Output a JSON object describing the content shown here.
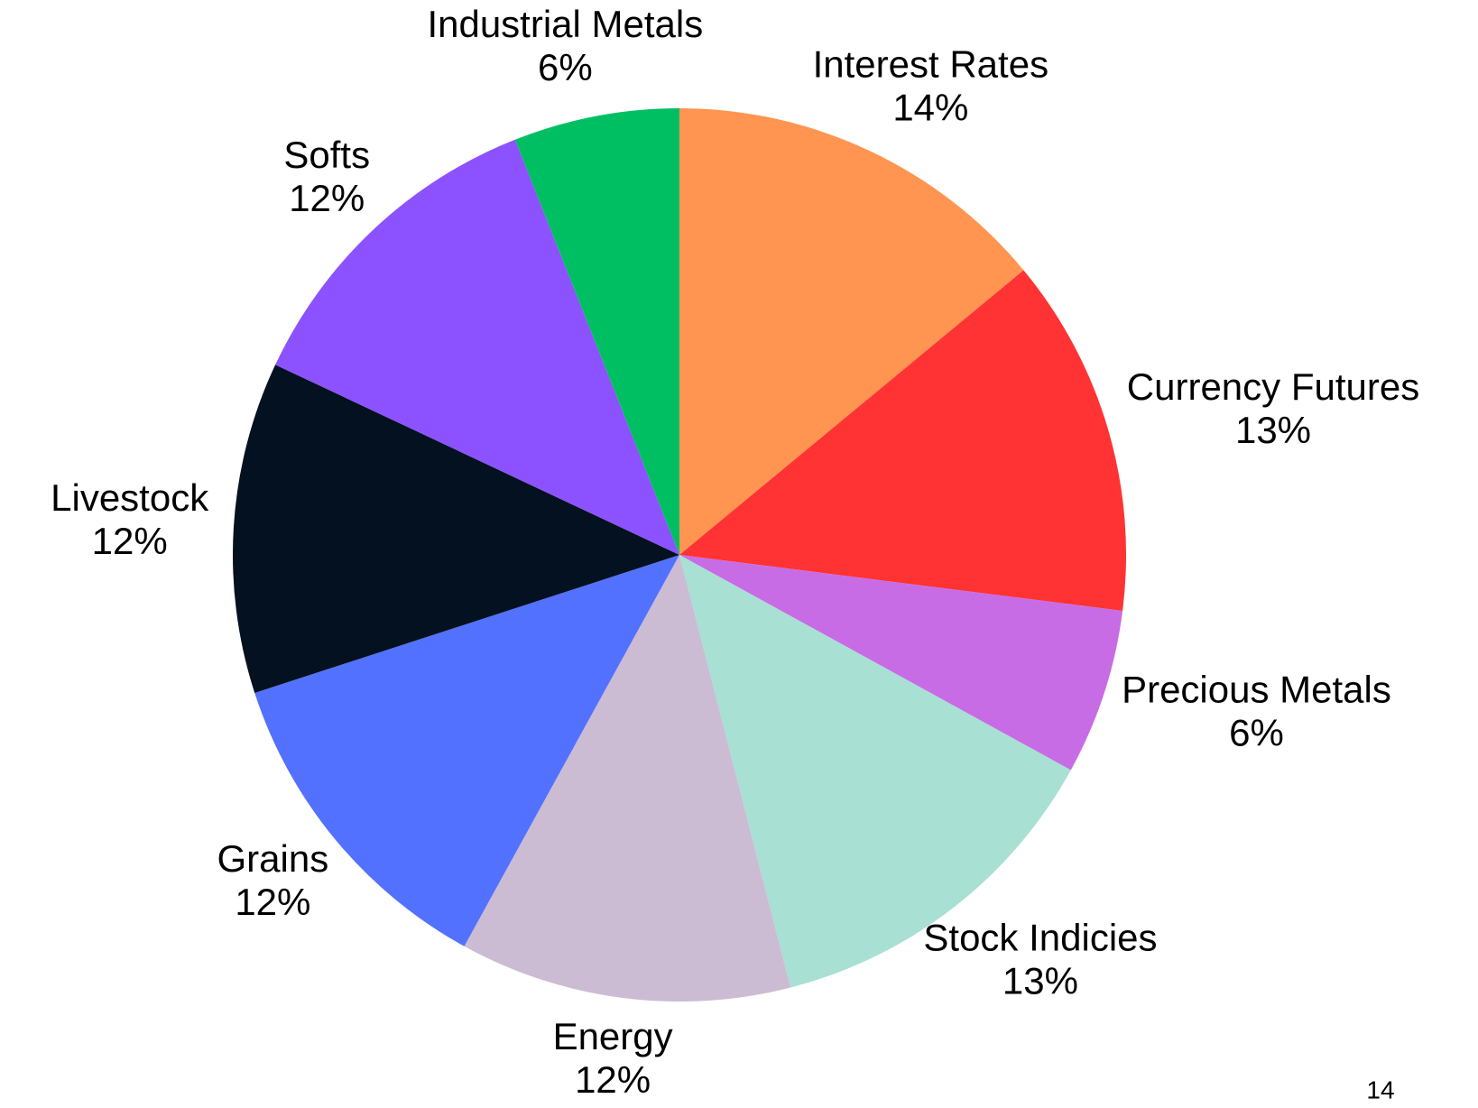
{
  "chart_data": {
    "type": "pie",
    "categories": [
      "Interest Rates",
      "Currency Futures",
      "Precious Metals",
      "Stock Indicies",
      "Energy",
      "Grains",
      "Livestock",
      "Softs",
      "Industrial Metals"
    ],
    "values": [
      14,
      13,
      6,
      13,
      12,
      12,
      12,
      12,
      6
    ],
    "value_labels": [
      "14%",
      "13%",
      "6%",
      "13%",
      "12%",
      "12%",
      "12%",
      "12%",
      "6%"
    ],
    "colors": [
      "#ff9550",
      "#ff3333",
      "#c86ce6",
      "#a8e0d3",
      "#cbbcd3",
      "#5271ff",
      "#041120",
      "#8c52ff",
      "#00bf63"
    ]
  },
  "page_number": "14"
}
